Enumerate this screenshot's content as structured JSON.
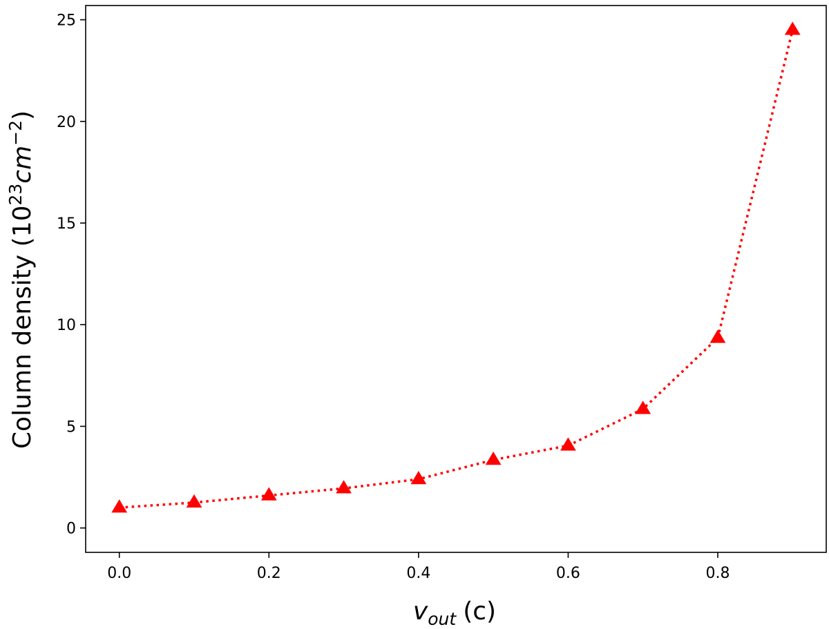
{
  "chart_data": {
    "type": "line",
    "xlabel": {
      "base": "v",
      "sub": "out",
      "unit": "(c)"
    },
    "ylabel": {
      "text": "Column density (10",
      "exp1": "23",
      "mid": "cm",
      "exp2": "−2",
      "close": ")"
    },
    "xlim": [
      -0.045,
      0.945
    ],
    "ylim": [
      -1.2,
      25.7
    ],
    "xticks": [
      0.0,
      0.2,
      0.4,
      0.6,
      0.8
    ],
    "xtick_labels": [
      "0.0",
      "0.2",
      "0.4",
      "0.6",
      "0.8"
    ],
    "yticks": [
      0,
      5,
      10,
      15,
      20,
      25
    ],
    "ytick_labels": [
      "0",
      "5",
      "10",
      "15",
      "20",
      "25"
    ],
    "grid": false,
    "series": [
      {
        "color": "#ff0000",
        "line_style": "dotted",
        "marker": "triangle-up",
        "x": [
          0.0,
          0.1,
          0.2,
          0.3,
          0.4,
          0.5,
          0.6,
          0.7,
          0.8,
          0.9
        ],
        "y": [
          1.0,
          1.25,
          1.6,
          1.95,
          2.4,
          3.35,
          4.05,
          5.85,
          9.35,
          24.5
        ]
      }
    ]
  }
}
